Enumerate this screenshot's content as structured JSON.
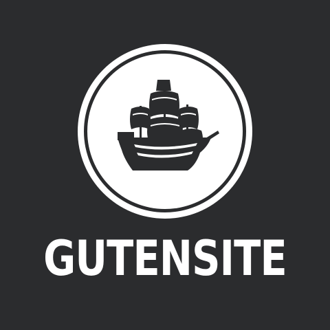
{
  "brand": {
    "name": "GUTENSITE",
    "emblem_icon": "sailing-ship-icon",
    "background_color": "#2b2c2e",
    "foreground_color": "#ffffff"
  }
}
